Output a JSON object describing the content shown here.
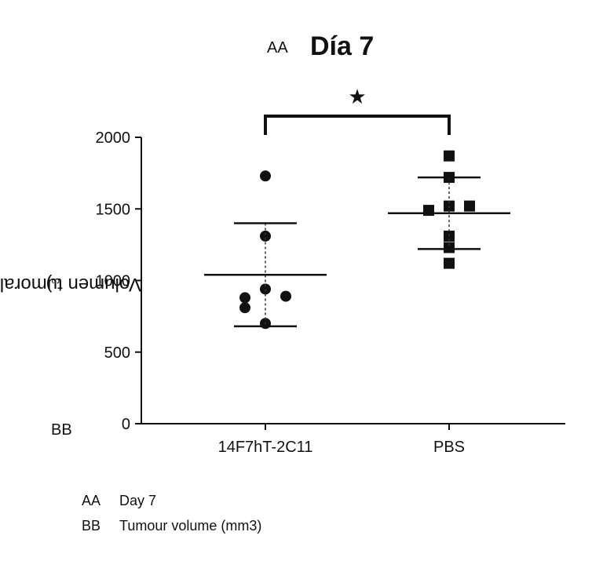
{
  "chart_data": {
    "type": "scatter",
    "title_tag": "AA",
    "title": "Día 7",
    "ylabel_tag": "BB",
    "ylabel": "Volumen tumoral (mm",
    "ylabel_sup": "3",
    "ylabel_close": ")",
    "ylim": [
      0,
      2000
    ],
    "yticks": [
      0,
      500,
      1000,
      1500,
      2000
    ],
    "categories": [
      "14F7hT-2C11",
      "PBS"
    ],
    "significance": "*",
    "series": [
      {
        "category": "14F7hT-2C11",
        "marker": "circle",
        "points": [
          1730,
          1310,
          940,
          880,
          890,
          810,
          700
        ],
        "mean": 1040,
        "sd_upper": 1400,
        "sd_lower": 680
      },
      {
        "category": "PBS",
        "marker": "square",
        "points": [
          1870,
          1720,
          1520,
          1490,
          1520,
          1310,
          1230,
          1120
        ],
        "mean": 1470,
        "sd_upper": 1720,
        "sd_lower": 1220
      }
    ],
    "grid": false
  },
  "legend": [
    {
      "key": "AA",
      "text": "Day 7"
    },
    {
      "key": "BB",
      "text": "Tumour volume (mm3)"
    }
  ]
}
